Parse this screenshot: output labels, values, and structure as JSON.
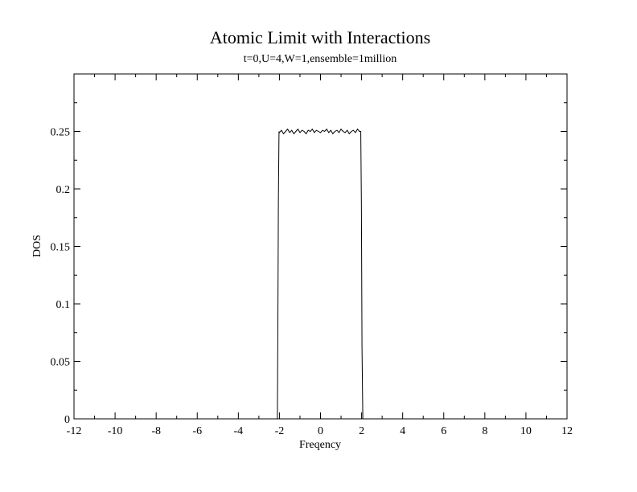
{
  "chart_data": {
    "type": "line",
    "title": "Atomic Limit with Interactions",
    "subtitle": "t=0,U=4,W=1,ensemble=1million",
    "xlabel": "Freqency",
    "ylabel": "DOS",
    "xlim": [
      -12,
      12
    ],
    "ylim": [
      0,
      0.3
    ],
    "grid": false,
    "xticks": [
      -12,
      -10,
      -8,
      -6,
      -4,
      -2,
      0,
      2,
      4,
      6,
      8,
      10,
      12
    ],
    "xtick_labels": [
      "-12",
      "-10",
      "-8",
      "-6",
      "-4",
      "-2",
      "0",
      "2",
      "4",
      "6",
      "8",
      "10",
      "12"
    ],
    "yticks": [
      0,
      0.05,
      0.1,
      0.15,
      0.2,
      0.25
    ],
    "ytick_labels": [
      "0",
      "0.05",
      "0.1",
      "0.15",
      "0.2",
      "0.25"
    ],
    "series": [
      {
        "color": "#000000",
        "x": [
          -12,
          -2.1,
          -2.08,
          -2.05,
          -2.02,
          -2.0,
          -1.9,
          -1.8,
          -1.7,
          -1.6,
          -1.5,
          -1.4,
          -1.3,
          -1.2,
          -1.1,
          -1.0,
          -0.9,
          -0.8,
          -0.7,
          -0.6,
          -0.5,
          -0.4,
          -0.3,
          -0.2,
          -0.1,
          0.0,
          0.1,
          0.2,
          0.3,
          0.4,
          0.5,
          0.6,
          0.7,
          0.8,
          0.9,
          1.0,
          1.1,
          1.2,
          1.3,
          1.4,
          1.5,
          1.6,
          1.7,
          1.8,
          1.9,
          1.96,
          1.99,
          2.0,
          2.02,
          2.06,
          2.1,
          12
        ],
        "y": [
          0,
          0,
          0.065,
          0.19,
          0.25,
          0.249,
          0.251,
          0.248,
          0.25,
          0.252,
          0.249,
          0.251,
          0.248,
          0.25,
          0.252,
          0.249,
          0.251,
          0.25,
          0.248,
          0.251,
          0.25,
          0.252,
          0.249,
          0.251,
          0.25,
          0.249,
          0.251,
          0.25,
          0.252,
          0.249,
          0.251,
          0.248,
          0.25,
          0.251,
          0.249,
          0.252,
          0.25,
          0.249,
          0.251,
          0.248,
          0.25,
          0.251,
          0.249,
          0.252,
          0.25,
          0.25,
          0.188,
          0.15,
          0.062,
          0,
          0,
          0
        ]
      }
    ]
  }
}
